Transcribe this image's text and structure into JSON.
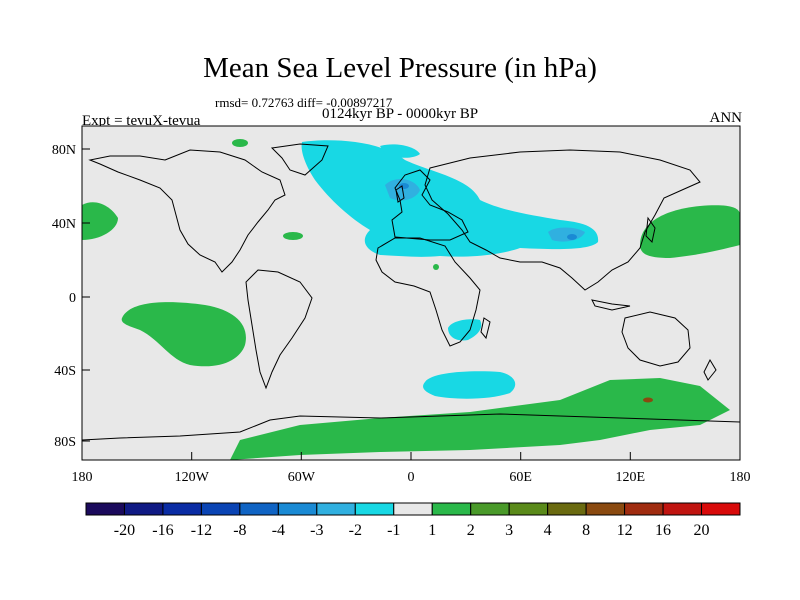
{
  "title": "Mean Sea Level Pressure (in hPa)",
  "stats": "rmsd= 0.72763 diff= -0.00897217",
  "period": "0124kyr BP - 0000kyr BP",
  "experiment": "Expt = tevuX-tevua",
  "season": "ANN",
  "lat_labels": [
    "80N",
    "40N",
    "0",
    "40S",
    "80S"
  ],
  "lon_labels": [
    "180",
    "120W",
    "60W",
    "0",
    "60E",
    "120E",
    "180"
  ],
  "colorbar": {
    "labels": [
      "-20",
      "-16",
      "-12",
      "-8",
      "-4",
      "-3",
      "-2",
      "-1",
      "1",
      "2",
      "3",
      "4",
      "8",
      "12",
      "16",
      "20"
    ],
    "colors": [
      "#1b0a5c",
      "#101a84",
      "#0a2ca4",
      "#0a44b4",
      "#1064c4",
      "#1a8ad4",
      "#30b0e0",
      "#18d8e4",
      "#e8e8e8",
      "#2ab84a",
      "#4a9a2a",
      "#5a8a1a",
      "#6a6a10",
      "#8a4a10",
      "#a02c10",
      "#c01410",
      "#d80a0a"
    ]
  },
  "colors": {
    "land_bg": "#e8e8e8",
    "positive": "#2ab84a",
    "negative": "#18d8e4",
    "strong_negative": "#30b0e0",
    "deep_negative": "#1a8ad4"
  }
}
